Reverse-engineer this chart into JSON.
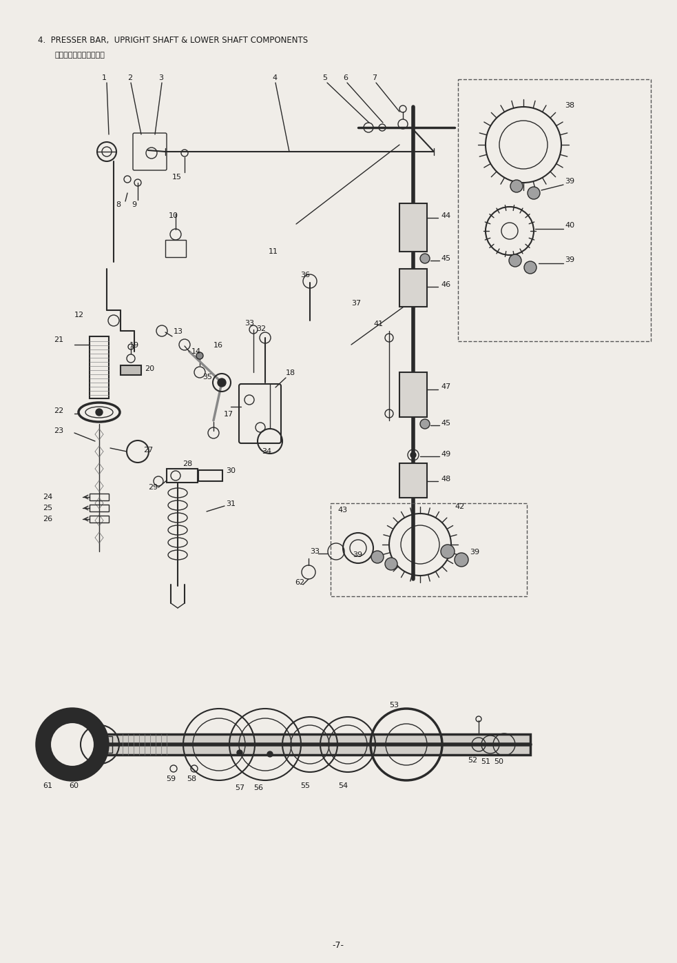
{
  "title_line1": "4.  PRESSER BAR,  UPRIGHT SHAFT & LOWER SHAFT COMPONENTS",
  "title_line2": "押え棒・立軸・下軸関係",
  "page_number": "-7-",
  "bg_color": "#f0ede8",
  "line_color": "#2a2a2a",
  "text_color": "#1a1a1a",
  "title_fontsize": 8.5,
  "subtitle_fontsize": 8.0,
  "label_fontsize": 8.0,
  "page_fontsize": 9,
  "figw": 9.83,
  "figh": 13.97,
  "dpi": 100
}
